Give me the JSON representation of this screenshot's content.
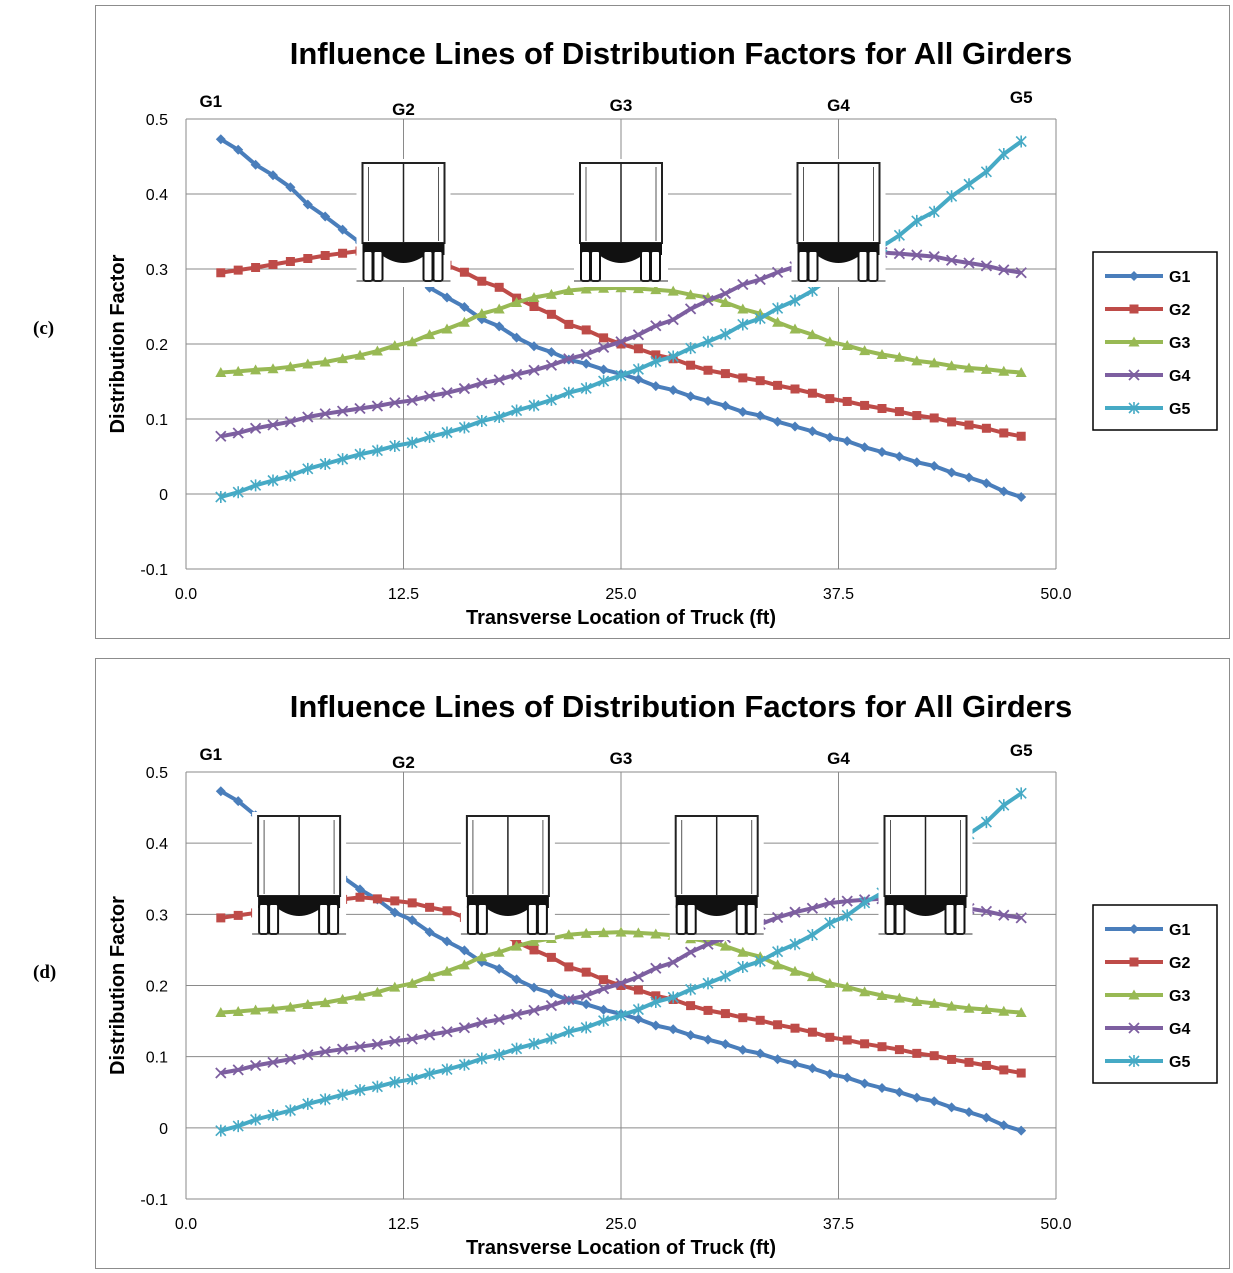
{
  "panels": [
    {
      "label": "(c)",
      "chart_data": {
        "type": "line",
        "title": "Influence Lines of Distribution Factors for All Girders",
        "xlabel": "Transverse Location of Truck (ft)",
        "ylabel": "Distribution Factor",
        "xlim": [
          0,
          50
        ],
        "ylim": [
          -0.1,
          0.5
        ],
        "x_ticks": [
          "0.0",
          "12.5",
          "25.0",
          "37.5",
          "50.0"
        ],
        "y_ticks": [
          "-0.1",
          "0",
          "0.1",
          "0.2",
          "0.3",
          "0.4",
          "0.5"
        ],
        "grid": true,
        "legend_position": "right",
        "girder_labels": [
          "G1",
          "G2",
          "G3",
          "G4",
          "G5"
        ],
        "truck_positions": [
          12.5,
          25.0,
          37.5
        ],
        "series": [
          {
            "name": "G1",
            "color": "#4a7ebb",
            "marker": "diamond",
            "points": [
              [
                2,
                0.473
              ],
              [
                5,
                0.425
              ],
              [
                8,
                0.37
              ],
              [
                10,
                0.335
              ],
              [
                12.5,
                0.297
              ],
              [
                15,
                0.262
              ],
              [
                17.5,
                0.228
              ],
              [
                20,
                0.197
              ],
              [
                22.5,
                0.176
              ],
              [
                25,
                0.16
              ],
              [
                27.5,
                0.141
              ],
              [
                30,
                0.124
              ],
              [
                32.5,
                0.107
              ],
              [
                35,
                0.09
              ],
              [
                37.5,
                0.073
              ],
              [
                40,
                0.056
              ],
              [
                42.5,
                0.04
              ],
              [
                45,
                0.022
              ],
              [
                48,
                -0.004
              ]
            ]
          },
          {
            "name": "G2",
            "color": "#be4b48",
            "marker": "square",
            "points": [
              [
                2,
                0.295
              ],
              [
                4,
                0.302
              ],
              [
                6,
                0.31
              ],
              [
                8,
                0.318
              ],
              [
                10,
                0.324
              ],
              [
                12.5,
                0.318
              ],
              [
                15,
                0.305
              ],
              [
                17.5,
                0.28
              ],
              [
                20,
                0.25
              ],
              [
                22.5,
                0.222
              ],
              [
                25,
                0.2
              ],
              [
                27.5,
                0.183
              ],
              [
                30,
                0.165
              ],
              [
                32.5,
                0.153
              ],
              [
                35,
                0.14
              ],
              [
                37.5,
                0.125
              ],
              [
                40,
                0.114
              ],
              [
                42.5,
                0.103
              ],
              [
                45,
                0.092
              ],
              [
                48,
                0.077
              ]
            ]
          },
          {
            "name": "G3",
            "color": "#98b954",
            "marker": "triangle",
            "points": [
              [
                2,
                0.162
              ],
              [
                5,
                0.167
              ],
              [
                8,
                0.176
              ],
              [
                10,
                0.185
              ],
              [
                12.5,
                0.2
              ],
              [
                15,
                0.22
              ],
              [
                17.5,
                0.244
              ],
              [
                20,
                0.262
              ],
              [
                22.5,
                0.273
              ],
              [
                25,
                0.275
              ],
              [
                27.5,
                0.272
              ],
              [
                30,
                0.262
              ],
              [
                32.5,
                0.244
              ],
              [
                35,
                0.22
              ],
              [
                37.5,
                0.2
              ],
              [
                40,
                0.186
              ],
              [
                42.5,
                0.176
              ],
              [
                45,
                0.168
              ],
              [
                48,
                0.162
              ]
            ]
          },
          {
            "name": "G4",
            "color": "#7d5fa0",
            "marker": "x",
            "points": [
              [
                2,
                0.077
              ],
              [
                5,
                0.092
              ],
              [
                8,
                0.107
              ],
              [
                10,
                0.114
              ],
              [
                12.5,
                0.123
              ],
              [
                15,
                0.135
              ],
              [
                17.5,
                0.15
              ],
              [
                20,
                0.165
              ],
              [
                22.5,
                0.183
              ],
              [
                25,
                0.203
              ],
              [
                27.5,
                0.228
              ],
              [
                30,
                0.258
              ],
              [
                32.5,
                0.283
              ],
              [
                35,
                0.303
              ],
              [
                37.5,
                0.318
              ],
              [
                40,
                0.322
              ],
              [
                42.5,
                0.318
              ],
              [
                45,
                0.308
              ],
              [
                48,
                0.295
              ]
            ]
          },
          {
            "name": "G5",
            "color": "#46aac5",
            "marker": "star",
            "points": [
              [
                2,
                -0.004
              ],
              [
                5,
                0.018
              ],
              [
                8,
                0.04
              ],
              [
                10,
                0.053
              ],
              [
                12.5,
                0.066
              ],
              [
                15,
                0.082
              ],
              [
                17.5,
                0.1
              ],
              [
                20,
                0.118
              ],
              [
                22.5,
                0.138
              ],
              [
                25,
                0.158
              ],
              [
                27.5,
                0.18
              ],
              [
                30,
                0.203
              ],
              [
                32.5,
                0.23
              ],
              [
                35,
                0.258
              ],
              [
                37.5,
                0.293
              ],
              [
                40,
                0.33
              ],
              [
                42.5,
                0.37
              ],
              [
                45,
                0.413
              ],
              [
                48,
                0.47
              ]
            ]
          }
        ]
      }
    },
    {
      "label": "(d)",
      "chart_data": {
        "type": "line",
        "title": "Influence Lines of Distribution Factors for All Girders",
        "xlabel": "Transverse Location of Truck (ft)",
        "ylabel": "Distribution Factor",
        "xlim": [
          0,
          50
        ],
        "ylim": [
          -0.1,
          0.5
        ],
        "x_ticks": [
          "0.0",
          "12.5",
          "25.0",
          "37.5",
          "50.0"
        ],
        "y_ticks": [
          "-0.1",
          "0",
          "0.1",
          "0.2",
          "0.3",
          "0.4",
          "0.5"
        ],
        "grid": true,
        "legend_position": "right",
        "girder_labels": [
          "G1",
          "G2",
          "G3",
          "G4",
          "G5"
        ],
        "truck_positions": [
          6.5,
          18.5,
          30.5,
          42.5
        ],
        "series": [
          {
            "name": "G1",
            "color": "#4a7ebb",
            "marker": "diamond",
            "points": [
              [
                2,
                0.473
              ],
              [
                5,
                0.425
              ],
              [
                8,
                0.37
              ],
              [
                10,
                0.335
              ],
              [
                12.5,
                0.297
              ],
              [
                15,
                0.262
              ],
              [
                17.5,
                0.228
              ],
              [
                20,
                0.197
              ],
              [
                22.5,
                0.176
              ],
              [
                25,
                0.16
              ],
              [
                27.5,
                0.141
              ],
              [
                30,
                0.124
              ],
              [
                32.5,
                0.107
              ],
              [
                35,
                0.09
              ],
              [
                37.5,
                0.073
              ],
              [
                40,
                0.056
              ],
              [
                42.5,
                0.04
              ],
              [
                45,
                0.022
              ],
              [
                48,
                -0.004
              ]
            ]
          },
          {
            "name": "G2",
            "color": "#be4b48",
            "marker": "square",
            "points": [
              [
                2,
                0.295
              ],
              [
                4,
                0.302
              ],
              [
                6,
                0.31
              ],
              [
                8,
                0.318
              ],
              [
                10,
                0.324
              ],
              [
                12.5,
                0.318
              ],
              [
                15,
                0.305
              ],
              [
                17.5,
                0.28
              ],
              [
                20,
                0.25
              ],
              [
                22.5,
                0.222
              ],
              [
                25,
                0.2
              ],
              [
                27.5,
                0.183
              ],
              [
                30,
                0.165
              ],
              [
                32.5,
                0.153
              ],
              [
                35,
                0.14
              ],
              [
                37.5,
                0.125
              ],
              [
                40,
                0.114
              ],
              [
                42.5,
                0.103
              ],
              [
                45,
                0.092
              ],
              [
                48,
                0.077
              ]
            ]
          },
          {
            "name": "G3",
            "color": "#98b954",
            "marker": "triangle",
            "points": [
              [
                2,
                0.162
              ],
              [
                5,
                0.167
              ],
              [
                8,
                0.176
              ],
              [
                10,
                0.185
              ],
              [
                12.5,
                0.2
              ],
              [
                15,
                0.22
              ],
              [
                17.5,
                0.244
              ],
              [
                20,
                0.262
              ],
              [
                22.5,
                0.273
              ],
              [
                25,
                0.275
              ],
              [
                27.5,
                0.272
              ],
              [
                30,
                0.262
              ],
              [
                32.5,
                0.244
              ],
              [
                35,
                0.22
              ],
              [
                37.5,
                0.2
              ],
              [
                40,
                0.186
              ],
              [
                42.5,
                0.176
              ],
              [
                45,
                0.168
              ],
              [
                48,
                0.162
              ]
            ]
          },
          {
            "name": "G4",
            "color": "#7d5fa0",
            "marker": "x",
            "points": [
              [
                2,
                0.077
              ],
              [
                5,
                0.092
              ],
              [
                8,
                0.107
              ],
              [
                10,
                0.114
              ],
              [
                12.5,
                0.123
              ],
              [
                15,
                0.135
              ],
              [
                17.5,
                0.15
              ],
              [
                20,
                0.165
              ],
              [
                22.5,
                0.183
              ],
              [
                25,
                0.203
              ],
              [
                27.5,
                0.228
              ],
              [
                30,
                0.258
              ],
              [
                32.5,
                0.283
              ],
              [
                35,
                0.303
              ],
              [
                37.5,
                0.318
              ],
              [
                40,
                0.322
              ],
              [
                42.5,
                0.318
              ],
              [
                45,
                0.308
              ],
              [
                48,
                0.295
              ]
            ]
          },
          {
            "name": "G5",
            "color": "#46aac5",
            "marker": "star",
            "points": [
              [
                2,
                -0.004
              ],
              [
                5,
                0.018
              ],
              [
                8,
                0.04
              ],
              [
                10,
                0.053
              ],
              [
                12.5,
                0.066
              ],
              [
                15,
                0.082
              ],
              [
                17.5,
                0.1
              ],
              [
                20,
                0.118
              ],
              [
                22.5,
                0.138
              ],
              [
                25,
                0.158
              ],
              [
                27.5,
                0.18
              ],
              [
                30,
                0.203
              ],
              [
                32.5,
                0.23
              ],
              [
                35,
                0.258
              ],
              [
                37.5,
                0.293
              ],
              [
                40,
                0.33
              ],
              [
                42.5,
                0.37
              ],
              [
                45,
                0.413
              ],
              [
                48,
                0.47
              ]
            ]
          }
        ]
      }
    }
  ]
}
